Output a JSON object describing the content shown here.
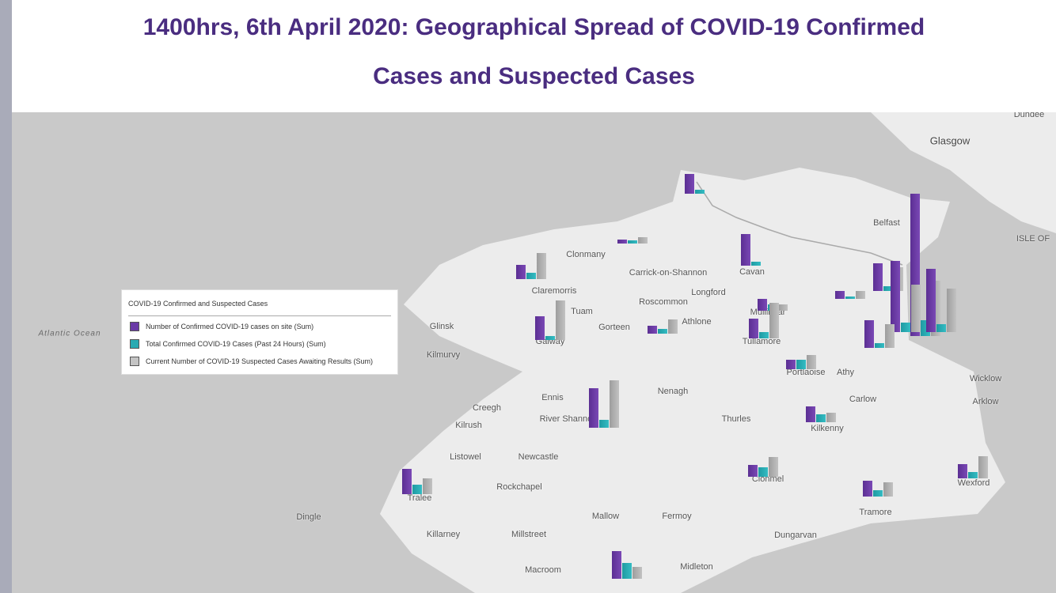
{
  "header": {
    "title_line1": "1400hrs, 6th April 2020: Geographical Spread of COVID-19 Confirmed",
    "title_line2": "Cases and Suspected Cases"
  },
  "colors": {
    "title": "#4a2d80",
    "confirmed": "#6a3aa6",
    "past24h": "#2aaab2",
    "suspected": "#b3b3b3"
  },
  "legend": {
    "title": "COVID-19 Confirmed and Suspected Cases",
    "items": [
      {
        "label": "Number of Confirmed COVID-19 cases on site (Sum)",
        "color": "#6a3aa6"
      },
      {
        "label": "Total Confirmed COVID-19 Cases (Past 24 Hours) (Sum)",
        "color": "#2aaab2"
      },
      {
        "label": "Current Number of COVID-19 Suspected Cases Awaiting Results (Sum)",
        "color": "#b3b3b3"
      }
    ]
  },
  "map": {
    "places": [
      "Glasgow",
      "Dundee",
      "Belfast",
      "ISLE OF",
      "Atlantic Ocean",
      "Creegh",
      "Kilrush",
      "Ennis",
      "River Shannon",
      "Nenagh",
      "Thurles",
      "Kilkenny",
      "Carlow",
      "Listowel",
      "Newcastle",
      "Rockchapel",
      "Tralee",
      "Dingle",
      "Mallow",
      "Fermoy",
      "Killarney",
      "Millstreet",
      "Dungarvan",
      "Macroom",
      "Midleton",
      "Clonmel",
      "Tramore",
      "Wexford",
      "Wicklow",
      "Arklow",
      "Portlaoise",
      "Tullamore",
      "Mullingar",
      "Athlone",
      "Gorteen",
      "Tuam",
      "Galway",
      "Roscommon",
      "Longford",
      "Claremorris",
      "Cavan",
      "Kilmurvy",
      "Glinsk",
      "Clonmany",
      "Carrick-on-Shannon",
      "Athy"
    ]
  }
}
